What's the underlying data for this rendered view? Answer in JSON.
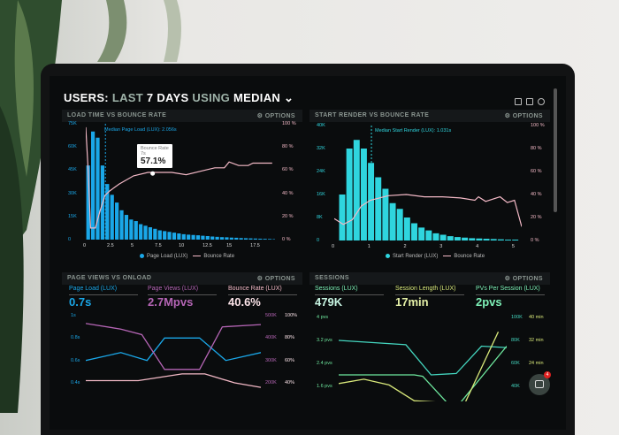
{
  "header": {
    "title_a": "USERS:",
    "title_b": "LAST",
    "title_c": "7 DAYS",
    "title_d": "USING",
    "title_e": "MEDIAN",
    "icons": [
      "monitor-icon",
      "chart-icon",
      "help-icon"
    ]
  },
  "colors": {
    "page_load": "#1aa7e8",
    "bounce": "#f3b9c6",
    "start_render": "#2fd5de",
    "page_views": "#b565b5",
    "sessions": "#44d6bf",
    "session_length": "#d8e87a",
    "pvs": "#6ee89e"
  },
  "panels": {
    "load": {
      "title": "LOAD TIME VS BOUNCE RATE",
      "options": "OPTIONS",
      "median_label": "Median Page Load (LUX): 2.056s",
      "tooltip": {
        "title": "Bounce Rate",
        "sub": "7s",
        "value": "57.1%"
      },
      "legend": [
        "Page Load (LUX)",
        "Bounce Rate"
      ]
    },
    "render": {
      "title": "START RENDER VS BOUNCE RATE",
      "options": "OPTIONS",
      "median_label": "Median Start Render (LUX): 1.031s",
      "legend": [
        "Start Render (LUX)",
        "Bounce Rate"
      ]
    },
    "pageviews": {
      "title": "PAGE VIEWS VS ONLOAD",
      "options": "OPTIONS",
      "metrics": [
        {
          "label": "Page Load (LUX)",
          "value": "0.7s"
        },
        {
          "label": "Page Views (LUX)",
          "value": "2.7Mpvs"
        },
        {
          "label": "Bounce Rate (LUX)",
          "value": "40.6%"
        }
      ]
    },
    "sessions": {
      "title": "SESSIONS",
      "options": "OPTIONS",
      "metrics": [
        {
          "label": "Sessions (LUX)",
          "value": "479K"
        },
        {
          "label": "Session Length (LUX)",
          "value": "17min"
        },
        {
          "label": "PVs Per Session (LUX)",
          "value": "2pvs"
        }
      ],
      "chat_badge": "4"
    }
  },
  "chart_data": [
    {
      "type": "bar",
      "name": "load",
      "x_ticks": [
        "0",
        "2.5",
        "5",
        "7.5",
        "10",
        "12.5",
        "15",
        "17.5"
      ],
      "y_ticks": [
        "0",
        "15K",
        "30K",
        "45K",
        "60K",
        "75K"
      ],
      "y2_ticks": [
        "0 %",
        "20 %",
        "40 %",
        "60 %",
        "80 %",
        "100 %"
      ],
      "xlim": [
        0,
        19.8
      ],
      "ylim": [
        0,
        75
      ],
      "y2lim": [
        0,
        100
      ],
      "median": 2.056,
      "bar_width": 0.5,
      "bars_x_start": 0,
      "bars": [
        48,
        70,
        66,
        48,
        36,
        29,
        24,
        19,
        16,
        13,
        12,
        10,
        9,
        8,
        7,
        6,
        5.5,
        5,
        4.5,
        4,
        3.5,
        3.2,
        3,
        2.8,
        2.5,
        2.3,
        2,
        1.8,
        1.6,
        1.5,
        1.3,
        1.2,
        1,
        0.9,
        0.8,
        0.7,
        0.6,
        0.5,
        0.4,
        0.3
      ],
      "line": [
        [
          0,
          97
        ],
        [
          0.25,
          60
        ],
        [
          0.5,
          10
        ],
        [
          1,
          10
        ],
        [
          1.5,
          25
        ],
        [
          2,
          38
        ],
        [
          2.5,
          42
        ],
        [
          3.5,
          48
        ],
        [
          5,
          55
        ],
        [
          6.5,
          58
        ],
        [
          7.5,
          58
        ],
        [
          9,
          58
        ],
        [
          10.5,
          56
        ],
        [
          12,
          59
        ],
        [
          13.5,
          62
        ],
        [
          14.5,
          62
        ],
        [
          15,
          67
        ],
        [
          16,
          64
        ],
        [
          17,
          64
        ],
        [
          17.5,
          66
        ],
        [
          19,
          66
        ],
        [
          19.5,
          66
        ]
      ]
    },
    {
      "type": "bar",
      "name": "render",
      "x_ticks": [
        "0",
        "1",
        "2",
        "3",
        "4",
        "5"
      ],
      "y_ticks": [
        "0",
        "8K",
        "16K",
        "24K",
        "32K",
        "40K"
      ],
      "y2_ticks": [
        "0 %",
        "20 %",
        "40 %",
        "60 %",
        "80 %",
        "100 %"
      ],
      "xlim": [
        0,
        5.2
      ],
      "ylim": [
        0,
        40
      ],
      "y2lim": [
        0,
        100
      ],
      "median": 1.031,
      "bar_width": 0.2,
      "bars_x_start": 0.12,
      "bars": [
        16,
        32,
        35,
        32,
        27,
        22,
        18,
        13,
        11,
        8,
        6,
        4.5,
        3.5,
        2.5,
        2,
        1.5,
        1.2,
        1,
        0.8,
        0.7,
        0.6,
        0.5,
        0.4,
        0.3,
        0.3
      ],
      "line": [
        [
          0,
          19
        ],
        [
          0.25,
          14
        ],
        [
          0.5,
          18
        ],
        [
          0.75,
          30
        ],
        [
          1,
          35
        ],
        [
          1.5,
          39
        ],
        [
          2,
          40
        ],
        [
          2.5,
          38
        ],
        [
          3,
          38
        ],
        [
          3.5,
          37
        ],
        [
          3.9,
          35
        ],
        [
          4,
          38
        ],
        [
          4.2,
          34
        ],
        [
          4.6,
          38
        ],
        [
          4.8,
          33
        ],
        [
          5,
          35
        ],
        [
          5.2,
          12
        ]
      ]
    },
    {
      "type": "line",
      "name": "pageviews",
      "y_ticks": [
        "0.4s",
        "0.6s",
        "0.8s",
        "1s"
      ],
      "y2_ticks": [
        "200K",
        "300K",
        "400K",
        "500K"
      ],
      "y3_ticks": [
        "40%",
        "60%",
        "80%",
        "100%"
      ],
      "xlim": [
        0,
        1
      ],
      "ylim": [
        0.4,
        1
      ],
      "series": [
        {
          "name": "Page Load (LUX)",
          "values": [
            [
              0,
              0.6
            ],
            [
              0.2,
              0.67
            ],
            [
              0.35,
              0.6
            ],
            [
              0.45,
              0.8
            ],
            [
              0.65,
              0.8
            ],
            [
              0.8,
              0.6
            ],
            [
              1,
              0.67
            ]
          ]
        },
        {
          "name": "Page Views (LUX)",
          "values": [
            [
              0,
              0.93
            ],
            [
              0.2,
              0.88
            ],
            [
              0.32,
              0.83
            ],
            [
              0.45,
              0.52
            ],
            [
              0.65,
              0.52
            ],
            [
              0.78,
              0.9
            ],
            [
              1,
              0.92
            ]
          ]
        },
        {
          "name": "Bounce Rate (LUX)",
          "values": [
            [
              0,
              0.42
            ],
            [
              0.3,
              0.42
            ],
            [
              0.55,
              0.48
            ],
            [
              0.68,
              0.48
            ],
            [
              0.85,
              0.4
            ],
            [
              1,
              0.36
            ]
          ]
        }
      ]
    },
    {
      "type": "line",
      "name": "sessions",
      "y_ticks": [
        "1.6 pvs",
        "2.4 pvs",
        "3.2 pvs",
        "4 pvs"
      ],
      "y2_ticks": [
        "40K",
        "60K",
        "80K",
        "100K"
      ],
      "y3_ticks": [
        "24 min",
        "32 min",
        "40 min"
      ],
      "xlim": [
        0,
        1
      ],
      "ylim": [
        1.6,
        4
      ],
      "series": [
        {
          "name": "Sessions (LUX)",
          "values": [
            [
              0,
              3.2
            ],
            [
              0.4,
              3.05
            ],
            [
              0.55,
              2.0
            ],
            [
              0.7,
              2.05
            ],
            [
              0.85,
              3.0
            ],
            [
              1,
              2.95
            ]
          ]
        },
        {
          "name": "PVs Per Session (LUX)",
          "values": [
            [
              0,
              2.0
            ],
            [
              0.45,
              2.0
            ],
            [
              0.5,
              1.95
            ],
            [
              0.65,
              1.0
            ],
            [
              0.72,
              1.0
            ],
            [
              1,
              3.0
            ]
          ]
        },
        {
          "name": "Session Length (LUX)",
          "values": [
            [
              0,
              1.7
            ],
            [
              0.15,
              1.85
            ],
            [
              0.3,
              1.65
            ],
            [
              0.45,
              1.1
            ],
            [
              0.75,
              1.0
            ],
            [
              0.95,
              3.5
            ]
          ]
        }
      ]
    }
  ]
}
